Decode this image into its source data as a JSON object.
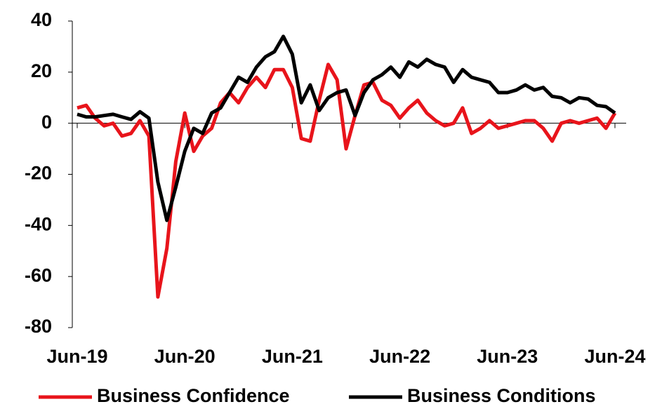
{
  "chart_data": {
    "type": "line",
    "categories": [
      "Jun-19",
      null,
      null,
      null,
      null,
      null,
      null,
      null,
      null,
      null,
      null,
      null,
      "Jun-20",
      null,
      null,
      null,
      null,
      null,
      null,
      null,
      null,
      null,
      null,
      null,
      "Jun-21",
      null,
      null,
      null,
      null,
      null,
      null,
      null,
      null,
      null,
      null,
      null,
      "Jun-22",
      null,
      null,
      null,
      null,
      null,
      null,
      null,
      null,
      null,
      null,
      null,
      "Jun-23",
      null,
      null,
      null,
      null,
      null,
      null,
      null,
      null,
      null,
      null,
      null,
      "Jun-24"
    ],
    "series": [
      {
        "name": "Business Confidence",
        "color": "#e8141b",
        "values": [
          6,
          7,
          2,
          -1,
          0,
          -5,
          -4,
          1,
          -5,
          -68,
          -49,
          -15,
          4,
          -11,
          -5,
          -2,
          8,
          12,
          8,
          14,
          18,
          14,
          21,
          21,
          14,
          -6,
          -7,
          9,
          23,
          17,
          -10,
          3,
          15,
          16,
          9,
          7,
          2,
          6,
          9,
          4,
          1,
          -1,
          0,
          6,
          -4,
          -2,
          1,
          -2,
          -1,
          0,
          1,
          1,
          -2,
          -7,
          0,
          1,
          0,
          1,
          2,
          -2,
          4
        ]
      },
      {
        "name": "Business Conditions",
        "color": "#000000",
        "values": [
          3.5,
          2.5,
          2.5,
          3,
          3.5,
          2.5,
          1.5,
          4.5,
          2,
          -23,
          -38,
          -25,
          -11,
          -2,
          -4,
          4,
          6,
          12,
          18,
          16,
          22,
          26,
          28,
          34,
          27,
          8,
          15,
          5,
          10,
          12,
          13,
          3,
          12,
          17,
          19,
          22,
          18,
          24,
          22,
          25,
          23,
          22,
          16,
          21,
          18,
          17,
          16,
          12,
          12,
          13,
          15,
          13,
          14,
          10.5,
          10,
          8,
          10,
          9.5,
          7,
          6.5,
          4
        ]
      }
    ],
    "ylim": [
      -80,
      40
    ],
    "yticks": [
      -80,
      -60,
      -40,
      -20,
      0,
      20,
      40
    ]
  }
}
